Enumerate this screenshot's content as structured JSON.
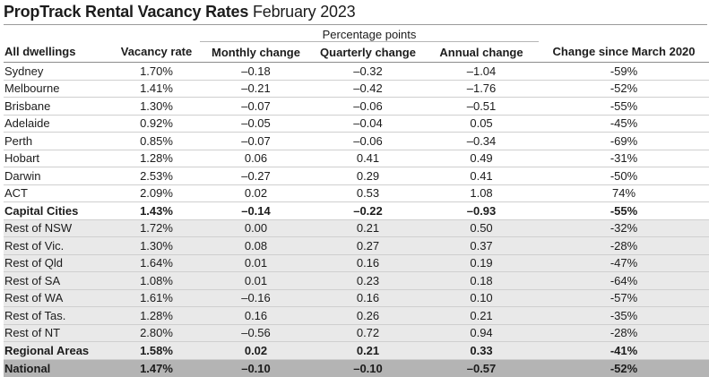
{
  "title": {
    "bold": "PropTrack Rental Vacancy Rates",
    "rest": "February 2023"
  },
  "group_header": "Percentage points",
  "columns": [
    "All dwellings",
    "Vacancy rate",
    "Monthly change",
    "Quarterly change",
    "Annual change",
    "Change since March 2020"
  ],
  "rows": [
    {
      "name": "Sydney",
      "vacancy": "1.70%",
      "monthly": "–0.18",
      "quarterly": "–0.32",
      "annual": "–1.04",
      "since2020": "-59%",
      "type": "city"
    },
    {
      "name": "Melbourne",
      "vacancy": "1.41%",
      "monthly": "–0.21",
      "quarterly": "–0.42",
      "annual": "–1.76",
      "since2020": "-52%",
      "type": "city"
    },
    {
      "name": "Brisbane",
      "vacancy": "1.30%",
      "monthly": "–0.07",
      "quarterly": "–0.06",
      "annual": "–0.51",
      "since2020": "-55%",
      "type": "city"
    },
    {
      "name": "Adelaide",
      "vacancy": "0.92%",
      "monthly": "–0.05",
      "quarterly": "–0.04",
      "annual": "0.05",
      "since2020": "-45%",
      "type": "city"
    },
    {
      "name": "Perth",
      "vacancy": "0.85%",
      "monthly": "–0.07",
      "quarterly": "–0.06",
      "annual": "–0.34",
      "since2020": "-69%",
      "type": "city"
    },
    {
      "name": "Hobart",
      "vacancy": "1.28%",
      "monthly": "0.06",
      "quarterly": "0.41",
      "annual": "0.49",
      "since2020": "-31%",
      "type": "city"
    },
    {
      "name": "Darwin",
      "vacancy": "2.53%",
      "monthly": "–0.27",
      "quarterly": "0.29",
      "annual": "0.41",
      "since2020": "-50%",
      "type": "city"
    },
    {
      "name": "ACT",
      "vacancy": "2.09%",
      "monthly": "0.02",
      "quarterly": "0.53",
      "annual": "1.08",
      "since2020": "74%",
      "type": "city"
    },
    {
      "name": "Capital Cities",
      "vacancy": "1.43%",
      "monthly": "–0.14",
      "quarterly": "–0.22",
      "annual": "–0.93",
      "since2020": "-55%",
      "type": "city-total"
    },
    {
      "name": "Rest of NSW",
      "vacancy": "1.72%",
      "monthly": "0.00",
      "quarterly": "0.21",
      "annual": "0.50",
      "since2020": "-32%",
      "type": "regional"
    },
    {
      "name": "Rest of Vic.",
      "vacancy": "1.30%",
      "monthly": "0.08",
      "quarterly": "0.27",
      "annual": "0.37",
      "since2020": "-28%",
      "type": "regional"
    },
    {
      "name": "Rest of Qld",
      "vacancy": "1.64%",
      "monthly": "0.01",
      "quarterly": "0.16",
      "annual": "0.19",
      "since2020": "-47%",
      "type": "regional"
    },
    {
      "name": "Rest of SA",
      "vacancy": "1.08%",
      "monthly": "0.01",
      "quarterly": "0.23",
      "annual": "0.18",
      "since2020": "-64%",
      "type": "regional"
    },
    {
      "name": "Rest of WA",
      "vacancy": "1.61%",
      "monthly": "–0.16",
      "quarterly": "0.16",
      "annual": "0.10",
      "since2020": "-57%",
      "type": "regional"
    },
    {
      "name": "Rest of Tas.",
      "vacancy": "1.28%",
      "monthly": "0.16",
      "quarterly": "0.26",
      "annual": "0.21",
      "since2020": "-35%",
      "type": "regional"
    },
    {
      "name": "Rest of NT",
      "vacancy": "2.80%",
      "monthly": "–0.56",
      "quarterly": "0.72",
      "annual": "0.94",
      "since2020": "-28%",
      "type": "regional"
    },
    {
      "name": "Regional Areas",
      "vacancy": "1.58%",
      "monthly": "0.02",
      "quarterly": "0.21",
      "annual": "0.33",
      "since2020": "-41%",
      "type": "regional-total"
    },
    {
      "name": "National",
      "vacancy": "1.47%",
      "monthly": "–0.10",
      "quarterly": "–0.10",
      "annual": "–0.57",
      "since2020": "-52%",
      "type": "national"
    }
  ]
}
